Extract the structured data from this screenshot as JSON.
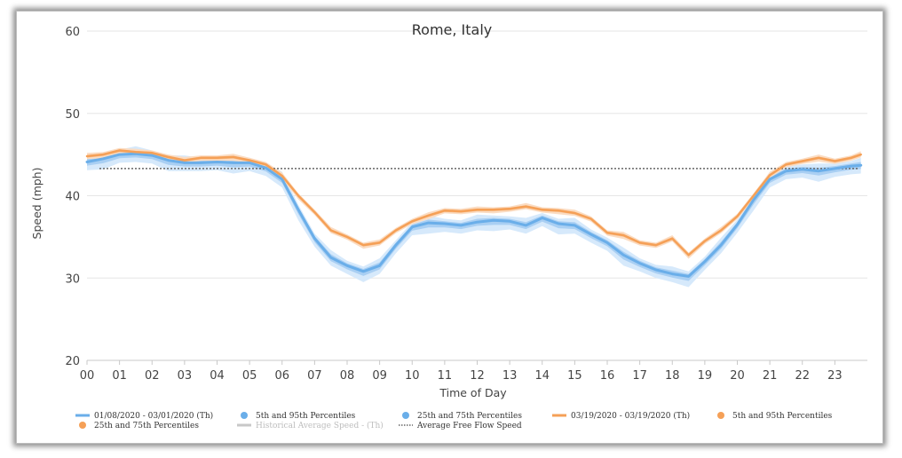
{
  "chart_data": {
    "type": "line",
    "title": "Rome, Italy",
    "xlabel": "Time of Day",
    "ylabel": "Speed (mph)",
    "ylim": [
      20,
      60
    ],
    "xlim": [
      0,
      24
    ],
    "grid": true,
    "x_ticks": [
      "00",
      "01",
      "02",
      "03",
      "04",
      "05",
      "06",
      "07",
      "08",
      "09",
      "10",
      "11",
      "12",
      "13",
      "14",
      "15",
      "16",
      "17",
      "18",
      "19",
      "20",
      "21",
      "22",
      "23"
    ],
    "y_ticks": [
      20,
      30,
      40,
      50,
      60
    ],
    "colors": {
      "blue": "#6aaee9",
      "blue_band_outer": "#d6e9fb",
      "blue_band_inner": "#a9cff3",
      "orange": "#f5a057",
      "orange_band_outer": "#fbdcc2",
      "orange_band_inner": "#f8c393",
      "historical": "#c8c8c8",
      "free_flow": "#666666"
    },
    "free_flow_speed": 43.3,
    "series": [
      {
        "name": "01/08/2020 - 03/01/2020 (Th)",
        "color": "#6aaee9",
        "points": [
          [
            0,
            44.1
          ],
          [
            0.5,
            44.5
          ],
          [
            1,
            45.0
          ],
          [
            1.5,
            45.1
          ],
          [
            2,
            44.9
          ],
          [
            2.5,
            44.3
          ],
          [
            3,
            44.0
          ],
          [
            3.5,
            44.0
          ],
          [
            4,
            44.1
          ],
          [
            4.5,
            44.0
          ],
          [
            5,
            44.0
          ],
          [
            5.5,
            43.4
          ],
          [
            6,
            42.0
          ],
          [
            6.5,
            38.3
          ],
          [
            7,
            34.8
          ],
          [
            7.5,
            32.5
          ],
          [
            8,
            31.5
          ],
          [
            8.5,
            30.8
          ],
          [
            9,
            31.5
          ],
          [
            9.5,
            34.0
          ],
          [
            10,
            36.2
          ],
          [
            10.5,
            36.7
          ],
          [
            11,
            36.6
          ],
          [
            11.5,
            36.4
          ],
          [
            12,
            36.8
          ],
          [
            12.5,
            37.0
          ],
          [
            13,
            36.9
          ],
          [
            13.5,
            36.4
          ],
          [
            14,
            37.3
          ],
          [
            14.5,
            36.6
          ],
          [
            15,
            36.4
          ],
          [
            15.5,
            35.3
          ],
          [
            16,
            34.3
          ],
          [
            16.5,
            32.8
          ],
          [
            17,
            31.8
          ],
          [
            17.5,
            31.0
          ],
          [
            18,
            30.5
          ],
          [
            18.5,
            30.2
          ],
          [
            19,
            32.0
          ],
          [
            19.5,
            34.0
          ],
          [
            20,
            36.5
          ],
          [
            20.5,
            39.5
          ],
          [
            21,
            42.0
          ],
          [
            21.5,
            43.0
          ],
          [
            22,
            43.2
          ],
          [
            22.5,
            43.0
          ],
          [
            23,
            43.3
          ],
          [
            23.5,
            43.6
          ],
          [
            23.8,
            43.7
          ]
        ]
      },
      {
        "name": "03/19/2020 - 03/19/2020 (Th)",
        "color": "#f5a057",
        "points": [
          [
            0,
            44.8
          ],
          [
            0.5,
            45.0
          ],
          [
            1,
            45.5
          ],
          [
            1.5,
            45.3
          ],
          [
            2,
            45.2
          ],
          [
            2.5,
            44.7
          ],
          [
            3,
            44.3
          ],
          [
            3.5,
            44.6
          ],
          [
            4,
            44.6
          ],
          [
            4.5,
            44.7
          ],
          [
            5,
            44.3
          ],
          [
            5.5,
            43.8
          ],
          [
            6,
            42.4
          ],
          [
            6.5,
            40.0
          ],
          [
            7,
            38.0
          ],
          [
            7.5,
            35.8
          ],
          [
            8,
            35.0
          ],
          [
            8.5,
            34.0
          ],
          [
            9,
            34.3
          ],
          [
            9.5,
            35.8
          ],
          [
            10,
            36.9
          ],
          [
            10.5,
            37.6
          ],
          [
            11,
            38.2
          ],
          [
            11.5,
            38.1
          ],
          [
            12,
            38.3
          ],
          [
            12.5,
            38.3
          ],
          [
            13,
            38.4
          ],
          [
            13.5,
            38.7
          ],
          [
            14,
            38.3
          ],
          [
            14.5,
            38.2
          ],
          [
            15,
            37.9
          ],
          [
            15.5,
            37.2
          ],
          [
            16,
            35.5
          ],
          [
            16.5,
            35.2
          ],
          [
            17,
            34.3
          ],
          [
            17.5,
            34.0
          ],
          [
            18,
            34.8
          ],
          [
            18.5,
            32.8
          ],
          [
            19,
            34.5
          ],
          [
            19.5,
            35.8
          ],
          [
            20,
            37.5
          ],
          [
            20.5,
            40.0
          ],
          [
            21,
            42.5
          ],
          [
            21.5,
            43.8
          ],
          [
            22,
            44.2
          ],
          [
            22.5,
            44.6
          ],
          [
            23,
            44.2
          ],
          [
            23.5,
            44.6
          ],
          [
            23.8,
            45.0
          ]
        ]
      }
    ],
    "legend": {
      "placement": "bottom",
      "items": [
        {
          "label": "01/08/2020 - 03/01/2020 (Th)",
          "symbol": "line",
          "color": "#6aaee9"
        },
        {
          "label": "5th and 95th Percentiles",
          "symbol": "dot",
          "color": "#6aaee9"
        },
        {
          "label": "25th and 75th Percentiles",
          "symbol": "dot",
          "color": "#6aaee9"
        },
        {
          "label": "03/19/2020 - 03/19/2020 (Th)",
          "symbol": "line",
          "color": "#f5a057"
        },
        {
          "label": "5th and 95th Percentiles",
          "symbol": "dot",
          "color": "#f5a057"
        },
        {
          "label": "25th and 75th Percentiles",
          "symbol": "dot",
          "color": "#f5a057"
        },
        {
          "label": "Historical Average Speed - (Th)",
          "symbol": "line",
          "color": "#c8c8c8",
          "muted": true
        },
        {
          "label": "Average Free Flow Speed",
          "symbol": "dotted",
          "color": "#666666"
        }
      ]
    }
  }
}
